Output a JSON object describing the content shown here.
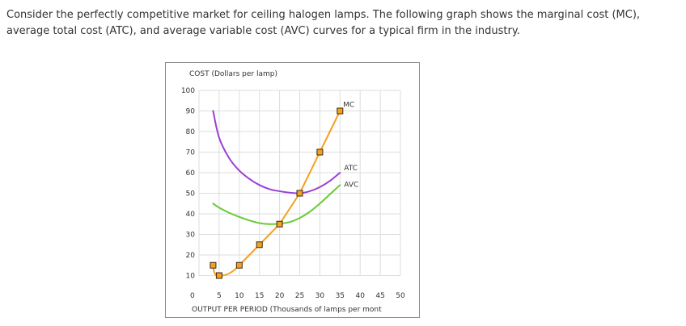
{
  "intro_text": "Consider the perfectly competitive market for ceiling halogen lamps. The following graph shows the marginal cost (MC), average total cost (ATC), and average variable cost (AVC) curves for a typical firm in the industry.",
  "chart_data": {
    "type": "line",
    "ylabel": "COST (Dollars per lamp)",
    "xlabel": "OUTPUT PER PERIOD (Thousands of lamps per mont",
    "xlim": [
      0,
      50
    ],
    "ylim": [
      0,
      100
    ],
    "x_ticks": [
      "0",
      "5",
      "10",
      "15",
      "20",
      "25",
      "30",
      "35",
      "40",
      "45",
      "50"
    ],
    "y_ticks": [
      "10",
      "20",
      "30",
      "40",
      "50",
      "60",
      "70",
      "80",
      "90",
      "100"
    ],
    "grid": true,
    "series": [
      {
        "name": "MC",
        "color": "#f5a020",
        "x": [
          3.5,
          5,
          10,
          15,
          20,
          25,
          30,
          35
        ],
        "y": [
          15,
          10,
          15,
          25,
          35,
          50,
          70,
          90
        ],
        "markers": true
      },
      {
        "name": "ATC",
        "color": "#9b3fd6",
        "x": [
          3.5,
          5,
          7.5,
          10,
          12.5,
          15,
          17.5,
          20,
          22.5,
          25,
          27.5,
          30,
          32.5,
          35
        ],
        "y": [
          90,
          77,
          67,
          61,
          57,
          54,
          52,
          51,
          50.3,
          50,
          51,
          53,
          56,
          60
        ],
        "markers": false
      },
      {
        "name": "AVC",
        "color": "#66cc33",
        "x": [
          3.5,
          5,
          7.5,
          10,
          12.5,
          15,
          17.5,
          20,
          22.5,
          25,
          27.5,
          30,
          32.5,
          35
        ],
        "y": [
          45,
          43,
          40.5,
          38.5,
          36.8,
          35.5,
          35,
          35.2,
          36,
          38,
          41,
          45,
          49.5,
          54
        ],
        "markers": false
      }
    ]
  }
}
